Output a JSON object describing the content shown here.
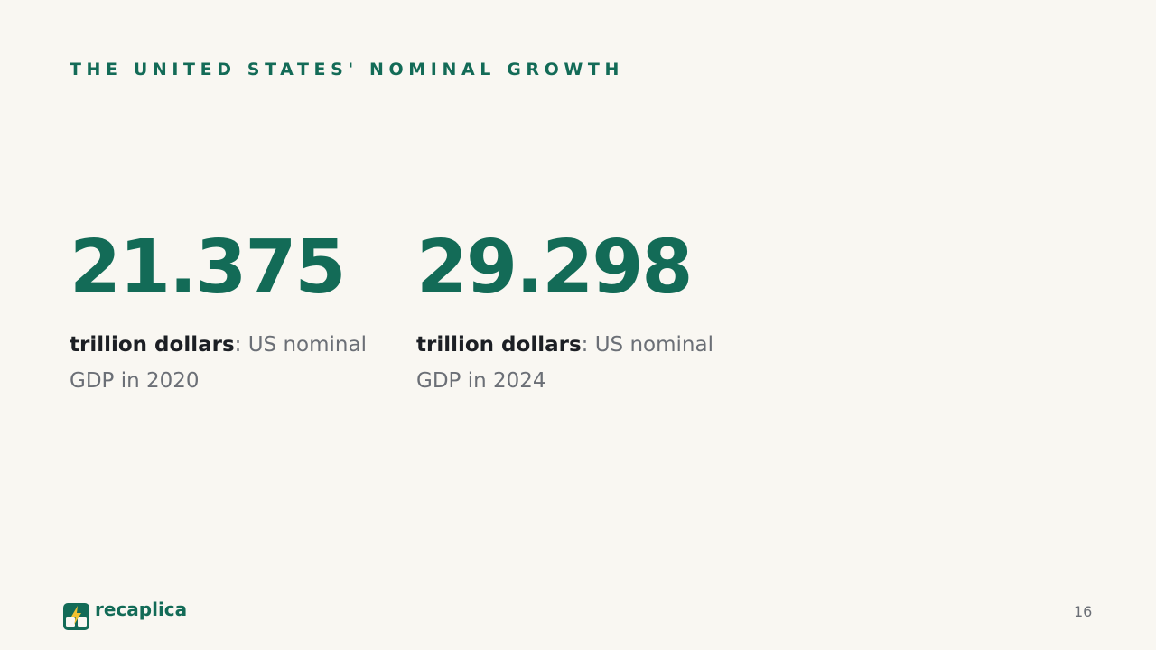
{
  "header": {
    "title": "THE UNITED STATES' NOMINAL GROWTH"
  },
  "stats": [
    {
      "value": "21.375",
      "unit": "trillion dollars",
      "description": ": US nominal GDP in 2020"
    },
    {
      "value": "29.298",
      "unit": "trillion dollars",
      "description": ": US nominal GDP in 2024"
    }
  ],
  "footer": {
    "brand": "recaplica",
    "page": "16"
  }
}
